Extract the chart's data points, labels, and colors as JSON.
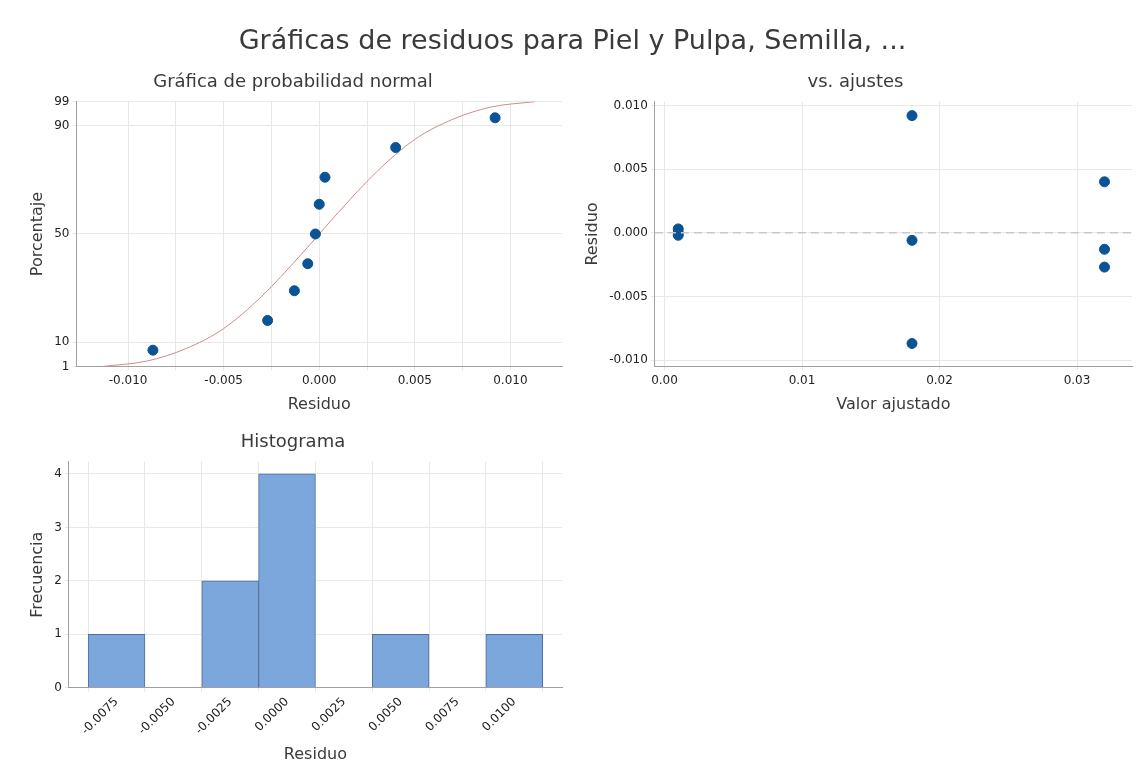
{
  "chart_data": [
    {
      "type": "scatter",
      "title": "Gráficas de residuos para Piel y Pulpa, Semilla, ...",
      "subtitle": "Gráfica de probabilidad normal",
      "xlabel": "Residuo",
      "ylabel": "Porcentaje",
      "xlim": [
        -0.0127,
        0.0127
      ],
      "ylim": [
        1,
        99
      ],
      "xticks": [
        {
          "value": -0.01,
          "label": "-0.010"
        },
        {
          "value": -0.0075,
          "label": null
        },
        {
          "value": -0.005,
          "label": "-0.005"
        },
        {
          "value": -0.0025,
          "label": null
        },
        {
          "value": 0,
          "label": "0.000"
        },
        {
          "value": 0.0025,
          "label": null
        },
        {
          "value": 0.005,
          "label": "0.005"
        },
        {
          "value": 0.0075,
          "label": null
        },
        {
          "value": 0.01,
          "label": "0.010"
        }
      ],
      "yticks": [
        1,
        10,
        50,
        90,
        99
      ],
      "grid": true,
      "series": [
        {
          "type": "scatter",
          "color": "#0b5394",
          "marker": "circle",
          "x": [
            -0.0087,
            -0.0027,
            -0.0013,
            -0.0006,
            -0.0002,
            0.0,
            0.0003,
            0.004,
            0.0092
          ],
          "values": [
            7,
            18,
            29,
            39,
            50,
            61,
            71,
            82,
            93
          ]
        },
        {
          "type": "line",
          "color": "#d08a8a",
          "marker": "none",
          "x": [
            -0.0113,
            -0.009,
            -0.007,
            -0.005,
            -0.003,
            -0.001,
            0,
            0.001,
            0.003,
            0.005,
            0.007,
            0.009,
            0.0113
          ],
          "values": [
            1,
            3,
            7.5,
            15,
            27,
            42,
            50,
            58,
            73,
            85,
            92.5,
            97,
            99
          ]
        }
      ]
    },
    {
      "type": "scatter",
      "title": "vs. ajustes",
      "xlabel": "Valor ajustado",
      "ylabel": "Residuo",
      "xlim": [
        -0.0007,
        0.034
      ],
      "ylim": [
        -0.0105,
        0.0103
      ],
      "xticks": [
        {
          "value": 0,
          "label": "0.00"
        },
        0.01,
        0.02,
        0.03
      ],
      "yticks": [
        {
          "value": -0.01,
          "label": "-0.010"
        },
        {
          "value": -0.005,
          "label": "-0.005"
        },
        {
          "value": 0,
          "label": "0.000"
        },
        {
          "value": 0.005,
          "label": "0.005"
        },
        {
          "value": 0.01,
          "label": "0.010"
        }
      ],
      "grid": true,
      "marker": "circle",
      "color": "#0b5394",
      "x": [
        0.001,
        0.001,
        0.001,
        0.018,
        0.018,
        0.018,
        0.032,
        0.032,
        0.032
      ],
      "values": [
        0.0003,
        0.0,
        -0.0002,
        0.0092,
        -0.0006,
        -0.0087,
        0.004,
        -0.0013,
        -0.0027
      ],
      "ref_lines": [
        {
          "axis": "y",
          "value": 0,
          "color": "#c8c8c8",
          "line_style": "dashed"
        }
      ]
    },
    {
      "type": "histogram",
      "title": "Histograma",
      "xlabel": "Residuo",
      "ylabel": "Frecuencia",
      "xlim": [
        -0.0096,
        0.0121
      ],
      "ylim": [
        0,
        4.23
      ],
      "xticks": [
        -0.0075,
        {
          "value": -0.005,
          "label": "-0.0050"
        },
        -0.0025,
        {
          "value": 0,
          "label": "0.0000"
        },
        0.0025,
        {
          "value": 0.005,
          "label": "0.0050"
        },
        0.0075,
        {
          "value": 0.01,
          "label": "0.0100"
        }
      ],
      "yticks": [
        0,
        1,
        2,
        3,
        4
      ],
      "grid": true,
      "color": "#7ba7dd",
      "bins": [
        -0.00875,
        -0.00625,
        -0.00375,
        -0.00125,
        0.00125,
        0.00375,
        0.00625,
        0.00875,
        0.01125
      ],
      "values": [
        1,
        0,
        2,
        4,
        0,
        1,
        0,
        1
      ]
    }
  ]
}
